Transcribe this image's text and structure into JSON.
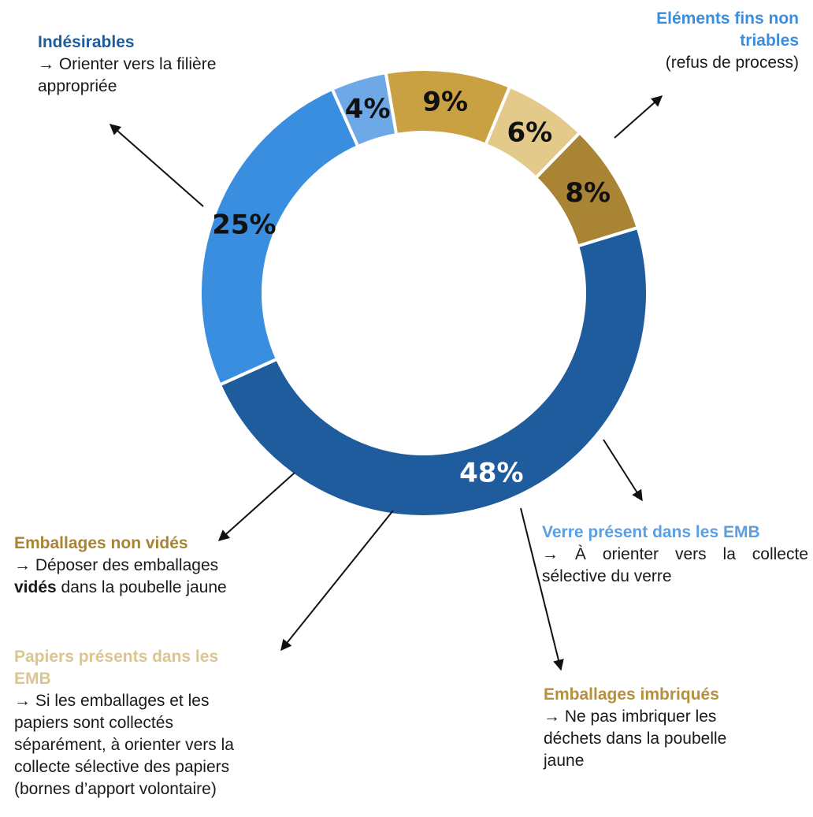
{
  "chart_data": {
    "type": "pie",
    "variant": "donut",
    "categories": [
      "Indésirables",
      "Eléments fins non triables",
      "Verre présent dans les EMB",
      "Emballages imbriqués",
      "Papiers présents dans les EMB",
      "Emballages non vidés"
    ],
    "values": [
      48,
      25,
      4,
      9,
      6,
      8
    ],
    "labels": [
      "48%",
      "25%",
      "4%",
      "9%",
      "6%",
      "8%"
    ],
    "colors": [
      "#1f5c9e",
      "#3a8ee0",
      "#6ea8e6",
      "#c9a042",
      "#e3c98a",
      "#a88434"
    ],
    "label_colors": [
      "#ffffff",
      "#111111",
      "#111111",
      "#111111",
      "#111111",
      "#111111"
    ]
  },
  "callouts": {
    "indesirables": {
      "title": "Indésirables",
      "title_color": "#1f5c9e",
      "lines": [
        "→ Orienter vers la filière",
        "appropriée"
      ]
    },
    "fins": {
      "title_lines": [
        "Eléments fins non",
        "triables"
      ],
      "title_color": "#3a8ee0",
      "lines": [
        "(refus de process)"
      ]
    },
    "verre": {
      "title": "Verre présent dans les EMB",
      "title_color": "#5a9fe4",
      "lines": [
        "→ À orienter vers la collecte",
        "sélective du verre"
      ]
    },
    "imbriques": {
      "title": "Emballages imbriqués",
      "title_color": "#b88f3a",
      "lines": [
        "→ Ne pas imbriquer les",
        "déchets dans la poubelle",
        "jaune"
      ]
    },
    "papiers": {
      "title_lines": [
        "Papiers présents dans les",
        "EMB"
      ],
      "title_color": "#dcc58e",
      "lines": [
        "→ Si les emballages et les",
        "papiers sont collectés",
        "séparément, à orienter vers la",
        "collecte sélective des papiers",
        "(bornes d’apport volontaire)"
      ]
    },
    "nonvides": {
      "title": "Emballages non vidés",
      "title_color": "#a88434",
      "line1": "→ Déposer des emballages",
      "line2_bold": "vidés",
      "line2_rest": " dans la poubelle jaune"
    }
  }
}
